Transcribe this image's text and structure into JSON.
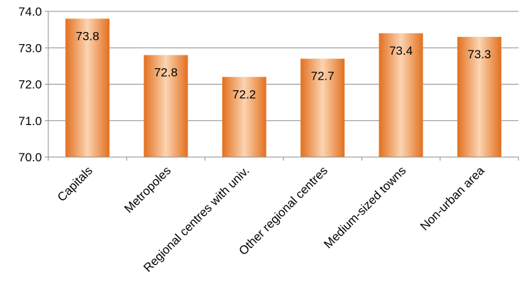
{
  "chart_data": {
    "type": "bar",
    "title": "",
    "xlabel": "",
    "ylabel": "",
    "categories": [
      "Capitals",
      "Metropoles",
      "Regional centres with univ.",
      "Other regional centres",
      "Medium-sized towns",
      "Non-urban area"
    ],
    "values": [
      73.8,
      72.8,
      72.2,
      72.7,
      73.4,
      73.3
    ],
    "value_labels": [
      "73.8",
      "72.8",
      "72.2",
      "72.7",
      "73.4",
      "73.3"
    ],
    "ylim": [
      70.0,
      74.0
    ],
    "y_ticks": [
      70.0,
      71.0,
      72.0,
      73.0,
      74.0
    ],
    "y_tick_labels": [
      "70.0",
      "71.0",
      "72.0",
      "73.0",
      "74.0"
    ],
    "grid": true,
    "legend": "none",
    "colors": {
      "bar_edge": "#e2701f",
      "bar_center": "#fcd4b2",
      "gridline": "#8c8c8c",
      "axis": "#8c8c8c"
    }
  }
}
